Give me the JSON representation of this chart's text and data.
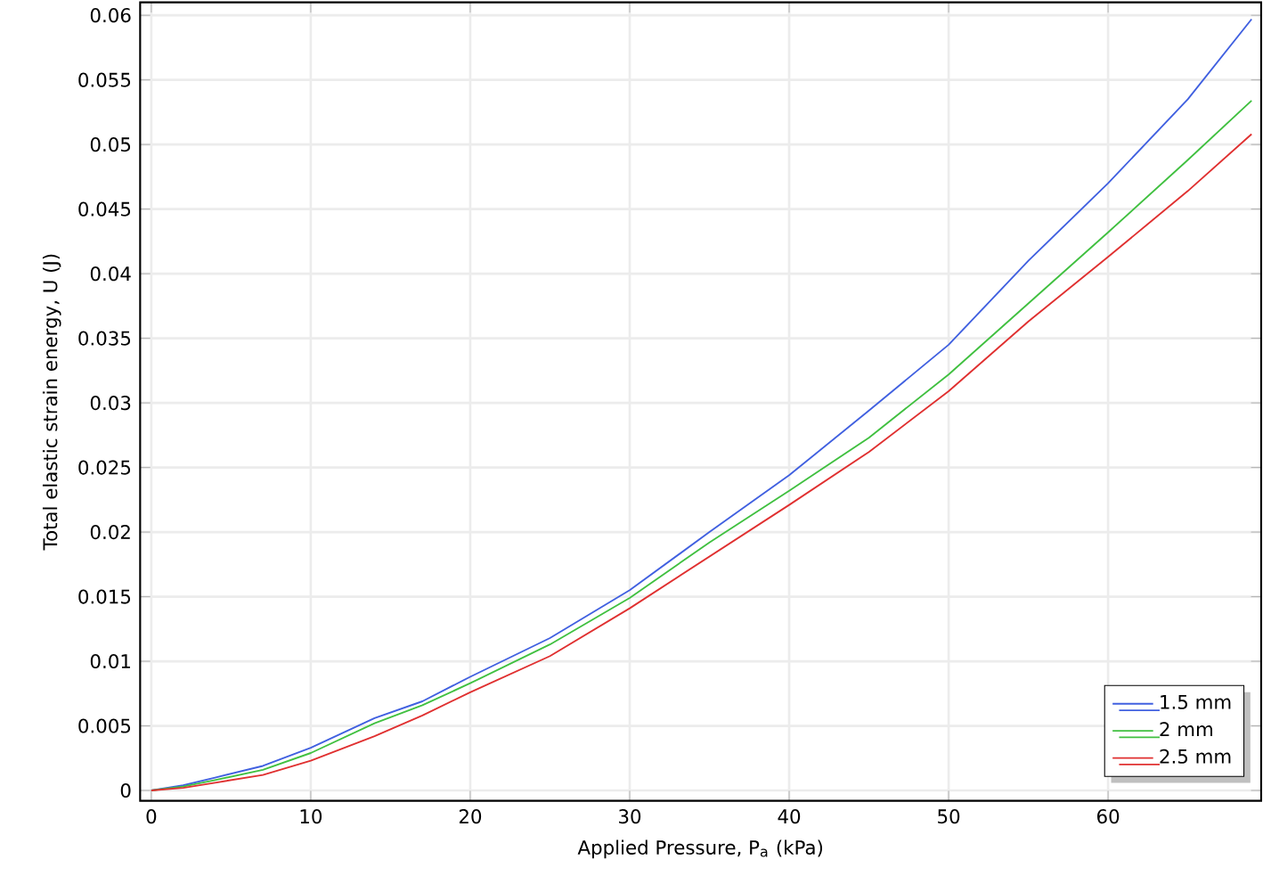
{
  "chart_data": {
    "type": "line",
    "xlabel": "Applied Pressure, P$_{a}$ (kPa)",
    "ylabel": "Total elastic strain energy, U (J)",
    "x": [
      0,
      2,
      4,
      7,
      10,
      14,
      17,
      20,
      25,
      30,
      35,
      40,
      45,
      50,
      55,
      60,
      65,
      69
    ],
    "series": [
      {
        "name": "1.5 mm",
        "color": "#4060e0",
        "values": [
          0,
          0.0004,
          0.001,
          0.0019,
          0.0033,
          0.0056,
          0.0069,
          0.0088,
          0.0118,
          0.0155,
          0.02,
          0.0244,
          0.0294,
          0.0345,
          0.041,
          0.047,
          0.0535,
          0.0597
        ]
      },
      {
        "name": "2 mm",
        "color": "#40c040",
        "values": [
          0,
          0.0003,
          0.0008,
          0.0016,
          0.0029,
          0.0052,
          0.0066,
          0.0083,
          0.0113,
          0.0149,
          0.0192,
          0.0232,
          0.0273,
          0.0322,
          0.0377,
          0.0432,
          0.0488,
          0.0534
        ]
      },
      {
        "name": "2.5 mm",
        "color": "#e03030",
        "values": [
          0,
          0.0002,
          0.0006,
          0.0012,
          0.0023,
          0.0042,
          0.0058,
          0.0076,
          0.0104,
          0.0141,
          0.0181,
          0.0221,
          0.0262,
          0.0309,
          0.0363,
          0.0413,
          0.0464,
          0.0508
        ]
      }
    ],
    "xlim": [
      -0.7,
      69.6
    ],
    "ylim": [
      -0.0008,
      0.061
    ],
    "xticks": [
      0,
      10,
      20,
      30,
      40,
      50,
      60
    ],
    "yticks": [
      0,
      0.005,
      0.01,
      0.015,
      0.02,
      0.025,
      0.03,
      0.035,
      0.04,
      0.045,
      0.05,
      0.055,
      0.06
    ],
    "grid": true,
    "legend": "bottom right",
    "marker": "none",
    "line_style": "solid"
  }
}
